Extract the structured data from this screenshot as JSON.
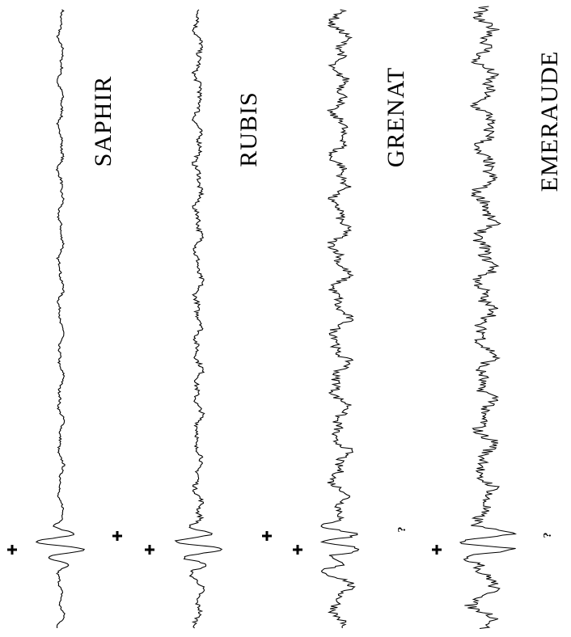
{
  "traces": [
    {
      "label": "SAPHIR"
    },
    {
      "label": "RUBIS"
    },
    {
      "label": "GRENAT",
      "note": "?"
    },
    {
      "label": "EMERAUDE",
      "note": "?"
    }
  ]
}
